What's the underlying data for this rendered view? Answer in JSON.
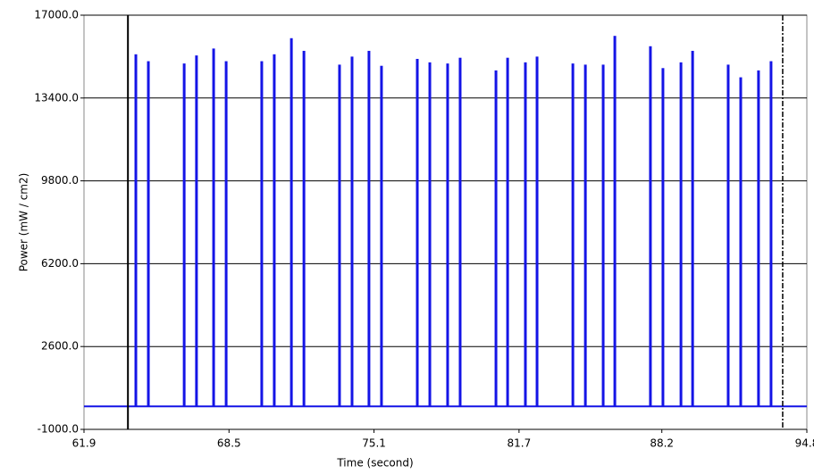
{
  "chart_data": {
    "type": "pulse",
    "x_label": "Time (second)",
    "y_label": "Power (mW / cm2)",
    "x": [
      64.26,
      64.83,
      66.46,
      67.02,
      67.8,
      68.37,
      69.99,
      70.56,
      71.34,
      71.91,
      73.53,
      74.1,
      74.87,
      75.44,
      77.07,
      77.64,
      78.45,
      79.02,
      80.65,
      81.18,
      81.99,
      82.52,
      84.15,
      84.72,
      85.53,
      86.06,
      87.68,
      88.25,
      89.07,
      89.6,
      91.22,
      91.79,
      92.6,
      93.17
    ],
    "values": [
      15300,
      15000,
      14900,
      15250,
      15550,
      15000,
      15000,
      15300,
      16000,
      15450,
      14850,
      15200,
      15450,
      14800,
      15100,
      14950,
      14900,
      15150,
      14600,
      15150,
      14950,
      15200,
      14900,
      14850,
      14850,
      16100,
      15650,
      14700,
      14950,
      15450,
      14850,
      14300,
      14600,
      15000
    ],
    "baseline": 0,
    "color": "#1414e6",
    "cursors": [
      63.9,
      93.7
    ],
    "xlim": [
      61.9,
      94.8
    ],
    "xticks": [
      61.9,
      68.5,
      75.1,
      81.7,
      88.2,
      94.8
    ],
    "ylim": [
      -1000,
      17000
    ],
    "yticks": [
      {
        "value": -1000,
        "label": "-1000.0"
      },
      {
        "value": 2600,
        "label": "2600.0"
      },
      {
        "value": 6200,
        "label": "6200.0"
      },
      {
        "value": 9800,
        "label": "9800.0"
      },
      {
        "value": 13400,
        "label": "13400.0"
      },
      {
        "value": 17000,
        "label": "17000.0"
      }
    ],
    "grid": true
  }
}
